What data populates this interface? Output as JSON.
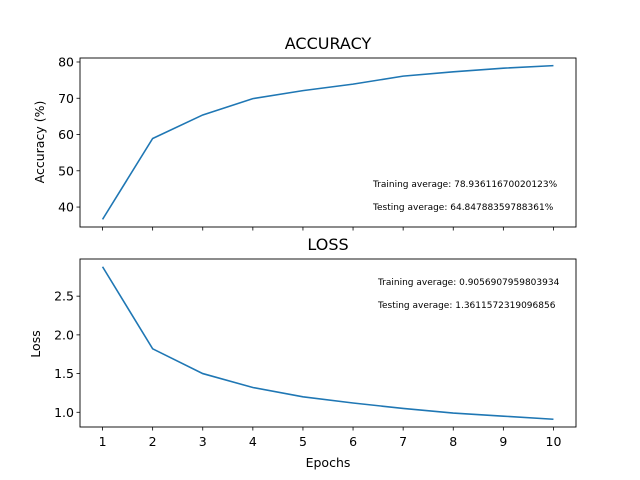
{
  "chart_data": [
    {
      "type": "line",
      "title": "ACCURACY",
      "xlabel": "",
      "ylabel": "Accuracy (%)",
      "x": [
        1,
        2,
        3,
        4,
        5,
        6,
        7,
        8,
        9,
        10
      ],
      "series": [
        {
          "values": [
            36.6,
            58.9,
            65.4,
            69.9,
            72.1,
            73.9,
            76.1,
            77.3,
            78.3,
            79.0
          ],
          "color": "#1f77b4"
        }
      ],
      "xlim": [
        0.55,
        10.45
      ],
      "ylim": [
        34.5,
        81.1
      ],
      "yticks": [
        40,
        50,
        60,
        70,
        80
      ],
      "xticks": [
        1,
        2,
        3,
        4,
        5,
        6,
        7,
        8,
        9,
        10
      ],
      "show_xtick_labels": false,
      "grid": false,
      "annotations": [
        "Training average: 78.93611670020123%",
        "Testing average: 64.84788359788361%"
      ]
    },
    {
      "type": "line",
      "title": "LOSS",
      "xlabel": "Epochs",
      "ylabel": "Loss",
      "x": [
        1,
        2,
        3,
        4,
        5,
        6,
        7,
        8,
        9,
        10
      ],
      "series": [
        {
          "values": [
            2.88,
            1.82,
            1.5,
            1.32,
            1.2,
            1.12,
            1.05,
            0.99,
            0.95,
            0.91
          ],
          "color": "#1f77b4"
        }
      ],
      "xlim": [
        0.55,
        10.45
      ],
      "ylim": [
        0.81,
        2.98
      ],
      "yticks": [
        1.0,
        1.5,
        2.0,
        2.5
      ],
      "ytick_labels": [
        "1.0",
        "1.5",
        "2.0",
        "2.5"
      ],
      "xticks": [
        1,
        2,
        3,
        4,
        5,
        6,
        7,
        8,
        9,
        10
      ],
      "show_xtick_labels": true,
      "grid": false,
      "annotations": [
        "Training average: 0.9056907959803934",
        "Testing average: 1.3611572319096856"
      ]
    }
  ]
}
